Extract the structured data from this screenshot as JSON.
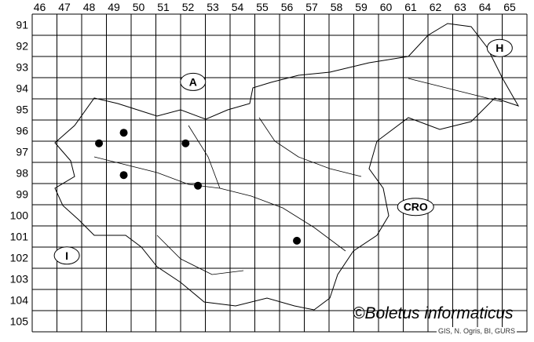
{
  "grid": {
    "columns": [
      "46",
      "47",
      "48",
      "49",
      "50",
      "51",
      "52",
      "53",
      "54",
      "55",
      "56",
      "57",
      "58",
      "59",
      "60",
      "61",
      "62",
      "63",
      "64",
      "65"
    ],
    "rows": [
      "91",
      "92",
      "93",
      "94",
      "95",
      "96",
      "97",
      "98",
      "99",
      "100",
      "101",
      "102",
      "103",
      "104",
      "105"
    ]
  },
  "country_labels": [
    {
      "text": "A",
      "col": 52.5,
      "row": 94.2
    },
    {
      "text": "H",
      "col": 64.9,
      "row": 92.6
    },
    {
      "text": "CRO",
      "col": 61.5,
      "row": 100.1
    },
    {
      "text": "I",
      "col": 47.4,
      "row": 102.4
    }
  ],
  "records": [
    {
      "col": 48.7,
      "row": 97.1
    },
    {
      "col": 49.7,
      "row": 96.6
    },
    {
      "col": 52.2,
      "row": 97.1
    },
    {
      "col": 49.7,
      "row": 98.6
    },
    {
      "col": 52.7,
      "row": 99.1
    },
    {
      "col": 56.7,
      "row": 101.7
    }
  ],
  "colors": {
    "record_dot": "#000000",
    "grid": "#000000"
  },
  "credit": "©Boletus informaticus",
  "source": "GIS, N. Ogris, BI, GURS"
}
